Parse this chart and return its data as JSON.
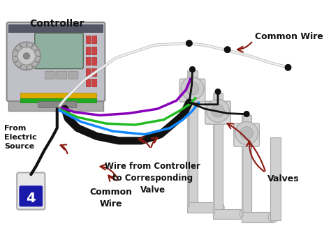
{
  "bg": "#ffffff",
  "dark_red": "#8b1a10",
  "controller_label": "Controller",
  "common_wire_label": "Common Wire",
  "from_electric_label": "From\nElectric\nSource",
  "wire_from_label": "Wire from Controller\nto Corresponding\nValve",
  "common_wire_label2": "Common\nWire",
  "valves_label": "Valves",
  "outlet_number": "4",
  "label_fontsize": 9,
  "wire_lw": 3,
  "pipe_color": "#d0d0d0",
  "pipe_edge": "#aaaaaa",
  "valve_color": "#cccccc",
  "controller_body": "#c0c0c8",
  "controller_edge": "#888888",
  "screen_color": "#8fb0a0",
  "outlet_face": "#e8e8e8",
  "outlet_num_color": "#1515aa"
}
